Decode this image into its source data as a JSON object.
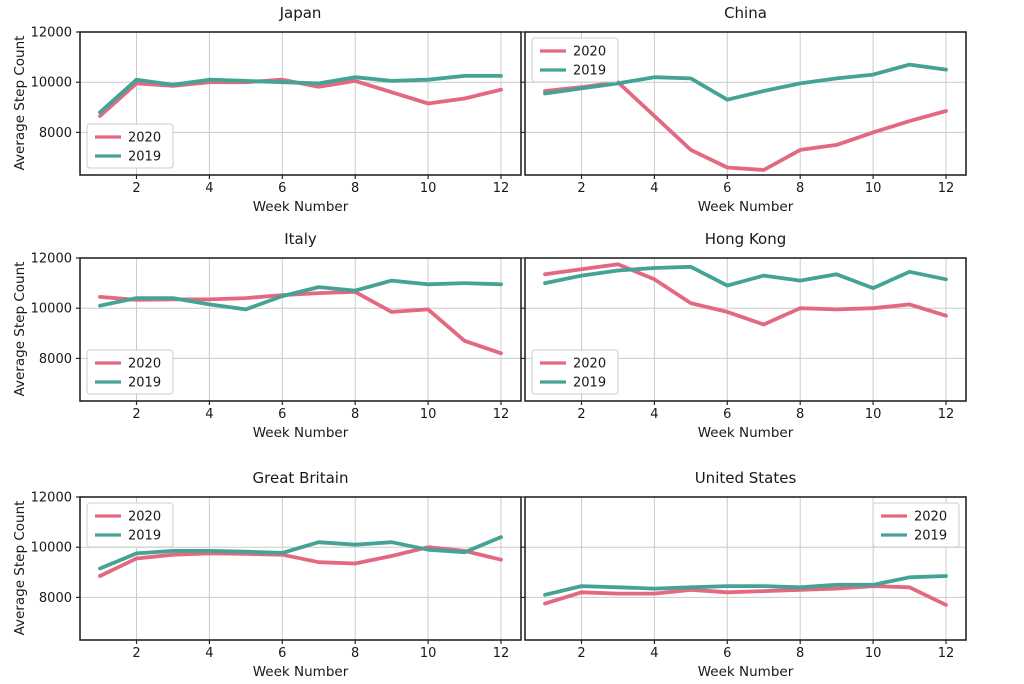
{
  "figure": {
    "ylabel": "Average Step Count",
    "xlabel": "Week Number",
    "background": "#ffffff",
    "colors": {
      "series_2020": "#e26980",
      "series_2019": "#45a396",
      "grid": "#cccccc",
      "spine": "#262626",
      "text": "#191919",
      "legend_border": "#cccccc",
      "legend_bg": "#ffffff"
    }
  },
  "chart_data": [
    {
      "type": "line",
      "title": "Japan",
      "xlabel": "Week Number",
      "ylabel": "Average Step Count",
      "x": [
        1,
        2,
        3,
        4,
        5,
        6,
        7,
        8,
        9,
        10,
        11,
        12
      ],
      "xticks": [
        2,
        4,
        6,
        8,
        10,
        12
      ],
      "yticks": [
        8000,
        10000,
        12000
      ],
      "xlim": [
        0.45,
        12.55
      ],
      "ylim": [
        6300,
        12000
      ],
      "grid": true,
      "show_yticklabels": true,
      "legend_pos": "lower left",
      "series": [
        {
          "name": "2020",
          "color": "#e26980",
          "values": [
            8650,
            9950,
            9850,
            10000,
            10000,
            10100,
            9820,
            10050,
            9600,
            9150,
            9350,
            9700
          ]
        },
        {
          "name": "2019",
          "color": "#45a396",
          "values": [
            8800,
            10100,
            9900,
            10100,
            10050,
            10000,
            9950,
            10200,
            10050,
            10100,
            10250,
            10250
          ]
        }
      ]
    },
    {
      "type": "line",
      "title": "China",
      "xlabel": "Week Number",
      "x": [
        1,
        2,
        3,
        4,
        5,
        6,
        7,
        8,
        9,
        10,
        11,
        12
      ],
      "xticks": [
        2,
        4,
        6,
        8,
        10,
        12
      ],
      "yticks": [
        8000,
        10000,
        12000
      ],
      "xlim": [
        0.45,
        12.55
      ],
      "ylim": [
        6300,
        12000
      ],
      "grid": true,
      "show_yticklabels": false,
      "legend_pos": "upper left",
      "series": [
        {
          "name": "2020",
          "color": "#e26980",
          "values": [
            9650,
            9800,
            10000,
            8650,
            7300,
            6600,
            6500,
            7300,
            7500,
            8000,
            8450,
            8850
          ]
        },
        {
          "name": "2019",
          "color": "#45a396",
          "values": [
            9550,
            9750,
            9950,
            10200,
            10150,
            9300,
            9650,
            9950,
            10150,
            10300,
            10700,
            10500
          ]
        }
      ]
    },
    {
      "type": "line",
      "title": "Italy",
      "xlabel": "Week Number",
      "ylabel": "Average Step Count",
      "x": [
        1,
        2,
        3,
        4,
        5,
        6,
        7,
        8,
        9,
        10,
        11,
        12
      ],
      "xticks": [
        2,
        4,
        6,
        8,
        10,
        12
      ],
      "yticks": [
        8000,
        10000,
        12000
      ],
      "xlim": [
        0.45,
        12.55
      ],
      "ylim": [
        6300,
        12000
      ],
      "grid": true,
      "show_yticklabels": true,
      "legend_pos": "lower left",
      "series": [
        {
          "name": "2020",
          "color": "#e26980",
          "values": [
            10450,
            10330,
            10350,
            10350,
            10400,
            10520,
            10600,
            10650,
            9850,
            9950,
            8700,
            8200
          ]
        },
        {
          "name": "2019",
          "color": "#45a396",
          "values": [
            10100,
            10400,
            10400,
            10150,
            9950,
            10480,
            10840,
            10700,
            11100,
            10950,
            11000,
            10950
          ]
        }
      ]
    },
    {
      "type": "line",
      "title": "Hong Kong",
      "xlabel": "Week Number",
      "x": [
        1,
        2,
        3,
        4,
        5,
        6,
        7,
        8,
        9,
        10,
        11,
        12
      ],
      "xticks": [
        2,
        4,
        6,
        8,
        10,
        12
      ],
      "yticks": [
        8000,
        10000,
        12000
      ],
      "xlim": [
        0.45,
        12.55
      ],
      "ylim": [
        6300,
        12000
      ],
      "grid": true,
      "show_yticklabels": false,
      "legend_pos": "lower left",
      "series": [
        {
          "name": "2020",
          "color": "#e26980",
          "values": [
            11350,
            11550,
            11750,
            11150,
            10200,
            9850,
            9350,
            10000,
            9950,
            10000,
            10150,
            9700
          ]
        },
        {
          "name": "2019",
          "color": "#45a396",
          "values": [
            11000,
            11300,
            11500,
            11600,
            11650,
            10900,
            11300,
            11100,
            11350,
            10800,
            11450,
            11150
          ]
        }
      ]
    },
    {
      "type": "line",
      "title": "Great Britain",
      "xlabel": "Week Number",
      "ylabel": "Average Step Count",
      "x": [
        1,
        2,
        3,
        4,
        5,
        6,
        7,
        8,
        9,
        10,
        11,
        12
      ],
      "xticks": [
        2,
        4,
        6,
        8,
        10,
        12
      ],
      "yticks": [
        8000,
        10000,
        12000
      ],
      "xlim": [
        0.45,
        12.55
      ],
      "ylim": [
        6300,
        12000
      ],
      "grid": true,
      "show_yticklabels": true,
      "legend_pos": "upper left",
      "series": [
        {
          "name": "2020",
          "color": "#e26980",
          "values": [
            8850,
            9550,
            9700,
            9750,
            9730,
            9700,
            9400,
            9350,
            9650,
            10000,
            9850,
            9500
          ]
        },
        {
          "name": "2019",
          "color": "#45a396",
          "values": [
            9150,
            9750,
            9850,
            9850,
            9820,
            9770,
            10200,
            10100,
            10200,
            9900,
            9800,
            10400
          ]
        }
      ]
    },
    {
      "type": "line",
      "title": "United States",
      "xlabel": "Week Number",
      "x": [
        1,
        2,
        3,
        4,
        5,
        6,
        7,
        8,
        9,
        10,
        11,
        12
      ],
      "xticks": [
        2,
        4,
        6,
        8,
        10,
        12
      ],
      "yticks": [
        8000,
        10000,
        12000
      ],
      "xlim": [
        0.45,
        12.55
      ],
      "ylim": [
        6300,
        12000
      ],
      "grid": true,
      "show_yticklabels": false,
      "legend_pos": "upper right",
      "series": [
        {
          "name": "2020",
          "color": "#e26980",
          "values": [
            7750,
            8200,
            8150,
            8150,
            8300,
            8200,
            8250,
            8300,
            8350,
            8450,
            8400,
            7700
          ]
        },
        {
          "name": "2019",
          "color": "#45a396",
          "values": [
            8100,
            8450,
            8400,
            8350,
            8400,
            8450,
            8450,
            8400,
            8500,
            8500,
            8800,
            8850
          ]
        }
      ]
    }
  ]
}
